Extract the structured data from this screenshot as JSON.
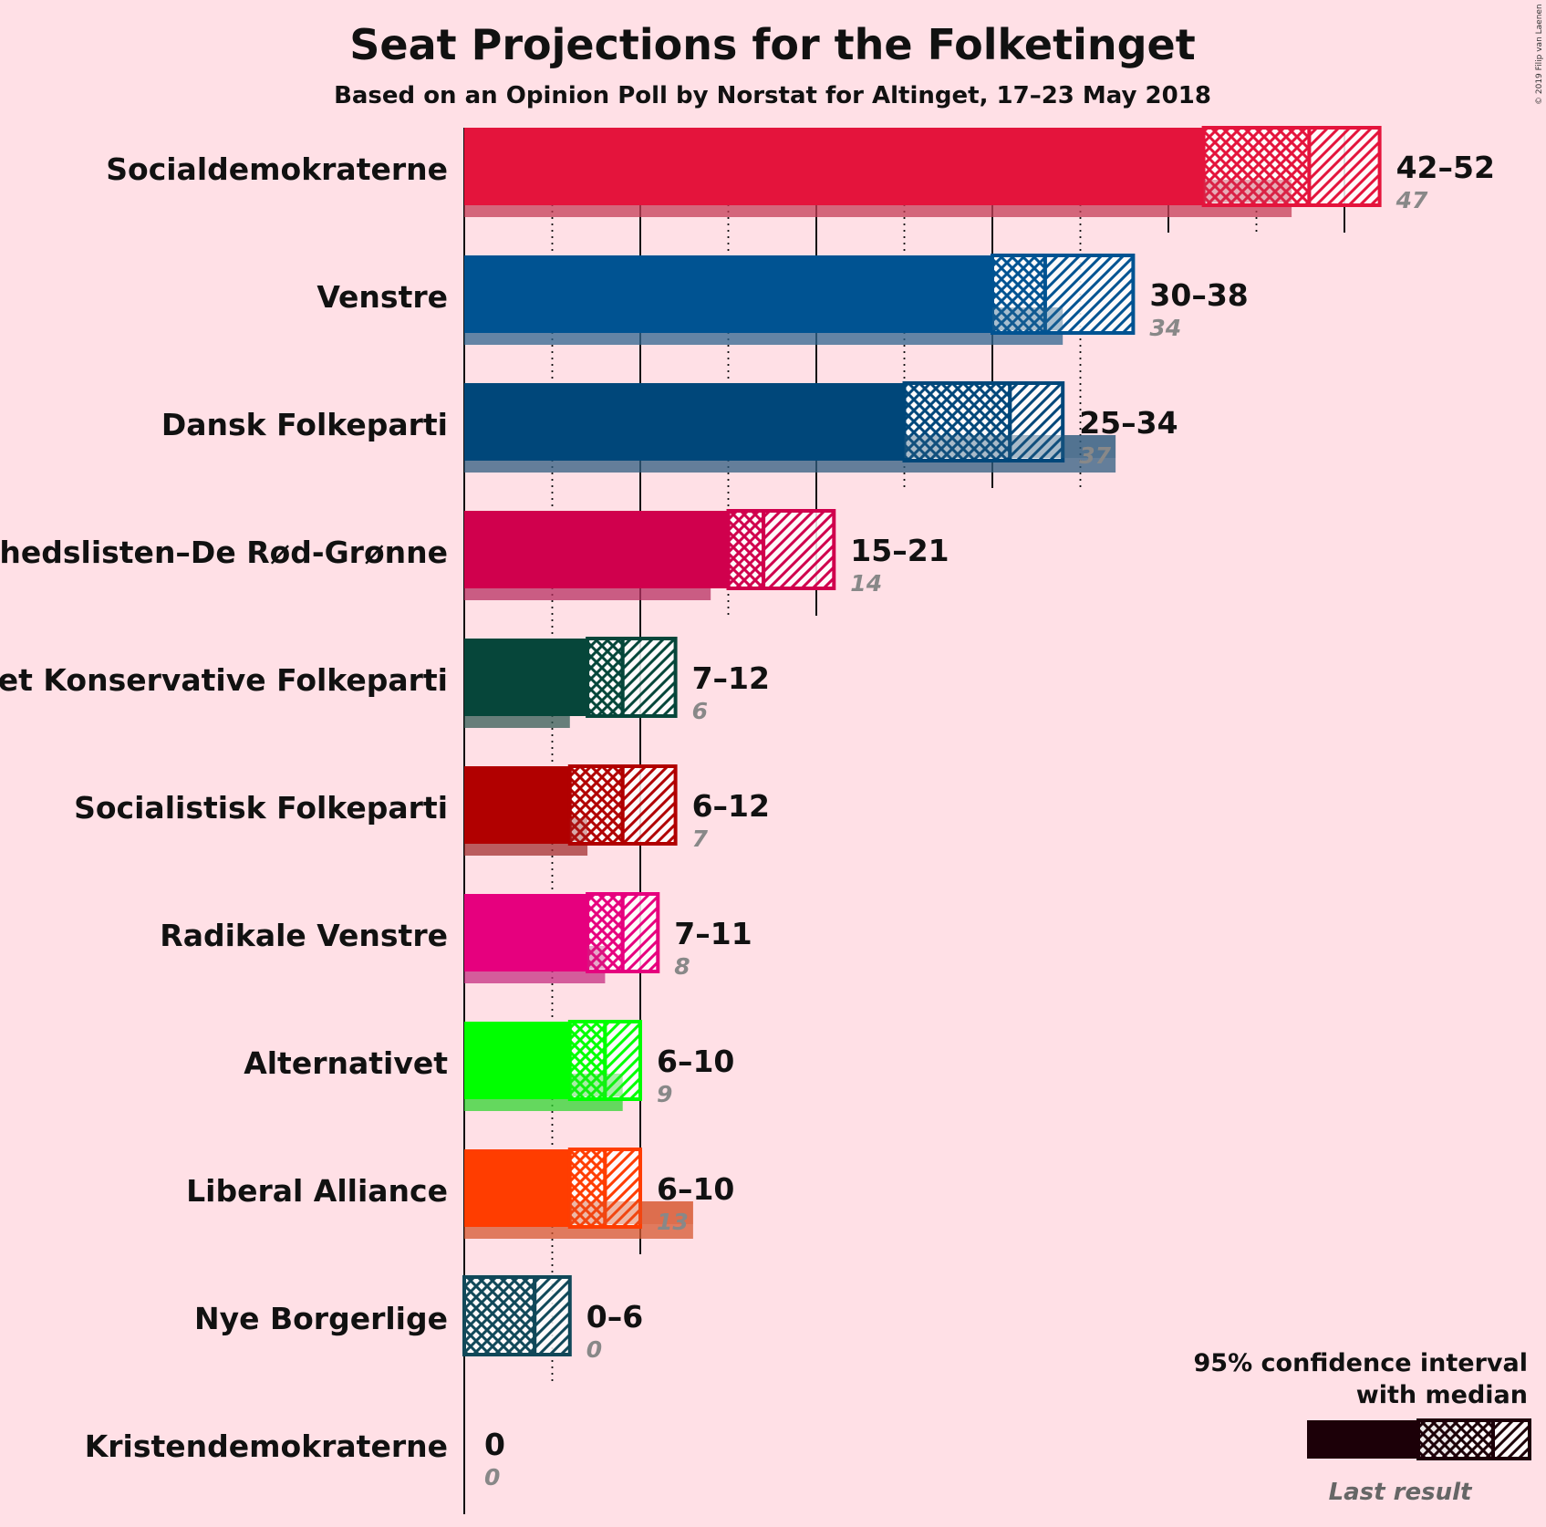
{
  "title": "Seat Projections for the Folketinget",
  "subtitle": "Based on an Opinion Poll by Norstat for Altinget, 17–23 May 2018",
  "copyright": "© 2019 Filip van Laenen",
  "legend": {
    "line1": "95% confidence interval",
    "line2": "with median",
    "last_result": "Last result"
  },
  "chart_data": {
    "type": "bar",
    "orientation": "horizontal",
    "title": "Seat Projections for the Folketinget",
    "subtitle": "Based on an Opinion Poll by Norstat for Altinget, 17–23 May 2018",
    "xlim": [
      0,
      60
    ],
    "grid_solid_every": 10,
    "grid_dotted_offset": 5,
    "parties": [
      {
        "name": "Socialdemokraterne",
        "low": 42,
        "median": 48,
        "high": 52,
        "label": "42–52",
        "last": 47,
        "last_label": "47",
        "color": "#E4143C"
      },
      {
        "name": "Venstre",
        "low": 30,
        "median": 33,
        "high": 38,
        "label": "30–38",
        "last": 34,
        "last_label": "34",
        "color": "#005392"
      },
      {
        "name": "Dansk Folkeparti",
        "low": 25,
        "median": 31,
        "high": 34,
        "label": "25–34",
        "last": 37,
        "last_label": "37",
        "color": "#00477A"
      },
      {
        "name": "Enhedslisten–De Rød-Grønne",
        "low": 15,
        "median": 17,
        "high": 21,
        "label": "15–21",
        "last": 14,
        "last_label": "14",
        "color": "#D0004D"
      },
      {
        "name": "Det Konservative Folkeparti",
        "low": 7,
        "median": 9,
        "high": 12,
        "label": "7–12",
        "last": 6,
        "last_label": "6",
        "color": "#06463A"
      },
      {
        "name": "Socialistisk Folkeparti",
        "low": 6,
        "median": 9,
        "high": 12,
        "label": "6–12",
        "last": 7,
        "last_label": "7",
        "color": "#B10000"
      },
      {
        "name": "Radikale Venstre",
        "low": 7,
        "median": 9,
        "high": 11,
        "label": "7–11",
        "last": 8,
        "last_label": "8",
        "color": "#E6007E"
      },
      {
        "name": "Alternativet",
        "low": 6,
        "median": 8,
        "high": 10,
        "label": "6–10",
        "last": 9,
        "last_label": "9",
        "color": "#00FF00"
      },
      {
        "name": "Liberal Alliance",
        "low": 6,
        "median": 8,
        "high": 10,
        "label": "6–10",
        "last": 13,
        "last_label": "13",
        "color": "#FF3D00"
      },
      {
        "name": "Nye Borgerlige",
        "low": 0,
        "median": 4,
        "high": 6,
        "label": "0–6",
        "last": 0,
        "last_label": "0",
        "color": "#114859"
      },
      {
        "name": "Kristendemokraterne",
        "low": 0,
        "median": 0,
        "high": 0,
        "label": "0",
        "last": 0,
        "last_label": "0",
        "color": "#555555"
      }
    ]
  }
}
